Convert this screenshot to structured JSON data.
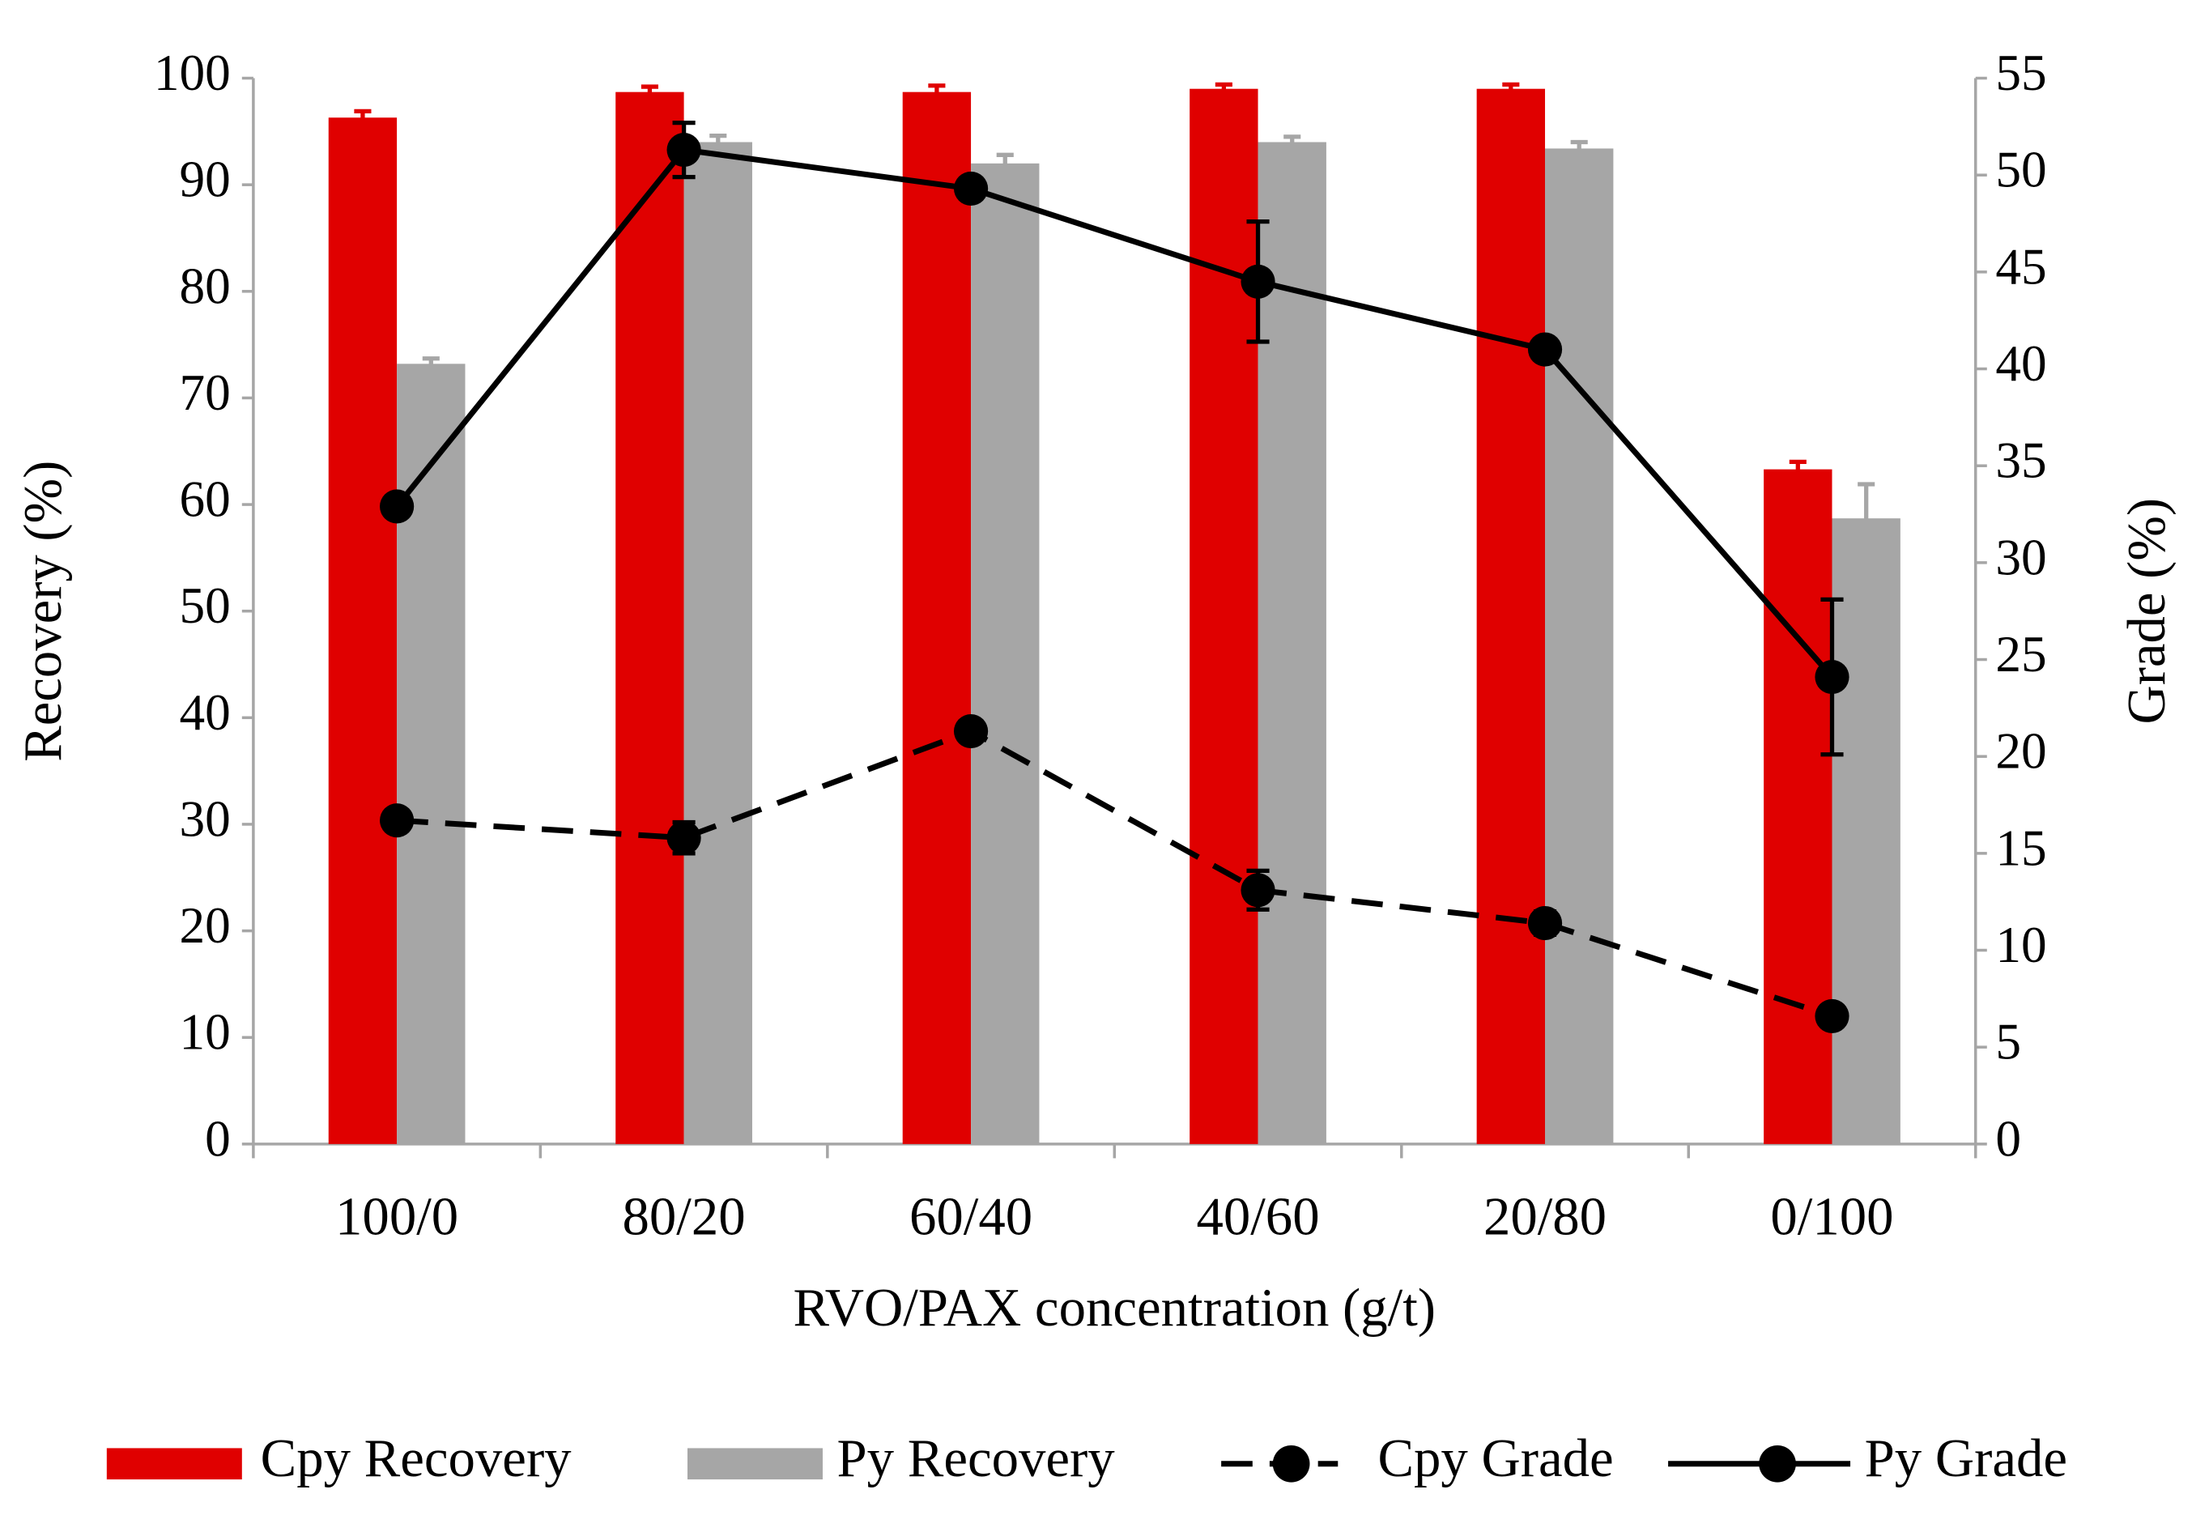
{
  "chart_data": {
    "type": "bar",
    "x_label": "RVO/PAX concentration (g/t)",
    "y_label": "Recovery (%)",
    "y2_label": "Grade (%)",
    "categories": [
      "100/0",
      "80/20",
      "60/40",
      "40/60",
      "20/80",
      "0/100"
    ],
    "series": [
      {
        "name": "Cpy Recovery",
        "type": "bar",
        "color": "#e00000",
        "values": [
          96.3,
          98.7,
          98.7,
          99.0,
          99.0,
          63.3
        ],
        "errors": [
          0.6,
          0.5,
          0.6,
          0.4,
          0.4,
          0.7
        ]
      },
      {
        "name": "Py Recovery",
        "type": "bar",
        "color": "#a6a6a6",
        "values": [
          73.2,
          94.0,
          92.0,
          94.0,
          93.4,
          58.7
        ],
        "errors": [
          0.5,
          0.6,
          0.8,
          0.5,
          0.6,
          3.2
        ]
      },
      {
        "name": "Cpy Grade",
        "type": "line",
        "axis": "y2",
        "color": "#000000",
        "line_style": "dashed",
        "values": [
          16.7,
          15.8,
          21.3,
          13.1,
          11.4,
          6.6
        ],
        "errors": [
          0.3,
          0.8,
          0.3,
          1.0,
          0.6,
          0.3
        ]
      },
      {
        "name": "Py Grade",
        "type": "line",
        "axis": "y2",
        "color": "#000000",
        "line_style": "solid",
        "values": [
          32.9,
          51.3,
          49.3,
          44.5,
          41.0,
          24.1
        ],
        "errors": [
          0.3,
          1.4,
          0.3,
          3.1,
          0.3,
          4.0
        ]
      }
    ],
    "ylim": [
      0,
      100
    ],
    "yticks": [
      0,
      10,
      20,
      30,
      40,
      50,
      60,
      70,
      80,
      90,
      100
    ],
    "y2lim": [
      0,
      55
    ],
    "y2ticks": [
      0,
      5,
      10,
      15,
      20,
      25,
      30,
      35,
      40,
      45,
      50,
      55
    ],
    "legend": "bottom"
  }
}
